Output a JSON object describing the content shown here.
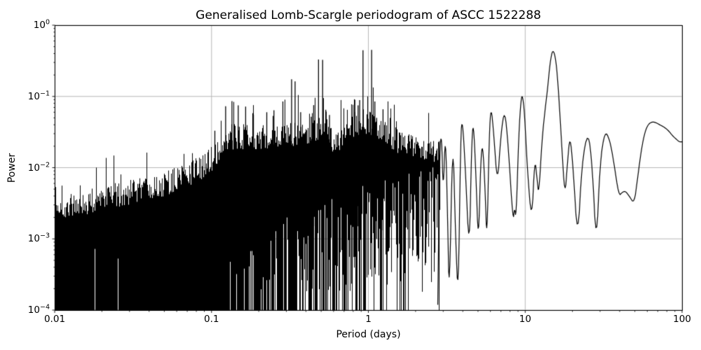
{
  "chart_data": {
    "type": "line",
    "title": "Generalised Lomb-Scargle periodogram of ASCC 1522288",
    "xlabel": "Period (days)",
    "ylabel": "Power",
    "xscale": "log",
    "yscale": "log",
    "xlim": [
      0.01,
      100
    ],
    "ylim": [
      0.0001,
      1
    ],
    "grid": true,
    "legend": null,
    "colors": {
      "line": "#000000",
      "grid": "#b0b0b0",
      "background": "#ffffff",
      "text": "#000000"
    },
    "x_ticks": [
      {
        "value": 0.01,
        "label": "0.01"
      },
      {
        "value": 0.1,
        "label": "0.1"
      },
      {
        "value": 1,
        "label": "1"
      },
      {
        "value": 10,
        "label": "10"
      },
      {
        "value": 100,
        "label": "100"
      }
    ],
    "y_ticks": [
      {
        "value": 1,
        "base": "10",
        "exp": "0"
      },
      {
        "value": 0.1,
        "base": "10",
        "exp": "−1"
      },
      {
        "value": 0.01,
        "base": "10",
        "exp": "−2"
      },
      {
        "value": 0.001,
        "base": "10",
        "exp": "−3"
      },
      {
        "value": 0.0001,
        "base": "10",
        "exp": "−4"
      }
    ],
    "noise_region": {
      "x_start": 0.01,
      "x_end": 2.85,
      "seed": 12,
      "envelope": [
        [
          0.01,
          0.0034
        ],
        [
          0.014,
          0.0038
        ],
        [
          0.02,
          0.0044
        ],
        [
          0.03,
          0.0055
        ],
        [
          0.045,
          0.0068
        ],
        [
          0.06,
          0.0082
        ],
        [
          0.08,
          0.011
        ],
        [
          0.1,
          0.016
        ],
        [
          0.115,
          0.024
        ],
        [
          0.13,
          0.032
        ],
        [
          0.15,
          0.034
        ],
        [
          0.18,
          0.03
        ],
        [
          0.22,
          0.032
        ],
        [
          0.27,
          0.034
        ],
        [
          0.32,
          0.036
        ],
        [
          0.38,
          0.036
        ],
        [
          0.44,
          0.042
        ],
        [
          0.5,
          0.046
        ],
        [
          0.56,
          0.036
        ],
        [
          0.62,
          0.024
        ],
        [
          0.7,
          0.032
        ],
        [
          0.8,
          0.048
        ],
        [
          0.9,
          0.055
        ],
        [
          1.0,
          0.05
        ],
        [
          1.15,
          0.044
        ],
        [
          1.3,
          0.038
        ],
        [
          1.5,
          0.03
        ],
        [
          1.8,
          0.024
        ],
        [
          2.1,
          0.021
        ],
        [
          2.5,
          0.023
        ],
        [
          2.85,
          0.019
        ]
      ],
      "gap_probability": [
        [
          0.01,
          0.0
        ],
        [
          0.13,
          0.02
        ],
        [
          0.18,
          0.15
        ],
        [
          0.25,
          0.25
        ],
        [
          0.4,
          0.35
        ],
        [
          0.6,
          0.5
        ],
        [
          1.0,
          0.7
        ],
        [
          1.5,
          0.8
        ],
        [
          2.0,
          0.85
        ],
        [
          2.85,
          0.9
        ]
      ],
      "gap_top_exp": [
        [
          0.14,
          -3.0
        ],
        [
          0.3,
          -2.7
        ],
        [
          0.6,
          -2.4
        ],
        [
          1.0,
          -2.2
        ],
        [
          2.0,
          -1.9
        ],
        [
          2.85,
          -1.75
        ]
      ]
    },
    "major_peaks": [
      [
        0.105,
        0.033
      ],
      [
        0.123,
        0.073
      ],
      [
        0.135,
        0.086
      ],
      [
        0.148,
        0.075
      ],
      [
        0.165,
        0.072
      ],
      [
        0.185,
        0.055
      ],
      [
        0.225,
        0.06
      ],
      [
        0.25,
        0.064
      ],
      [
        0.285,
        0.085
      ],
      [
        0.324,
        0.174
      ],
      [
        0.341,
        0.163
      ],
      [
        0.37,
        0.06
      ],
      [
        0.432,
        0.052
      ],
      [
        0.448,
        0.0755
      ],
      [
        0.481,
        0.33
      ],
      [
        0.511,
        0.327
      ],
      [
        0.535,
        0.065
      ],
      [
        0.565,
        0.055
      ],
      [
        0.82,
        0.09
      ],
      [
        0.86,
        0.075
      ],
      [
        0.88,
        0.089
      ],
      [
        0.924,
        0.445
      ],
      [
        1.049,
        0.45
      ],
      [
        1.1,
        0.085
      ],
      [
        1.13,
        0.05
      ],
      [
        1.24,
        0.066
      ]
    ],
    "resolved_curve": [
      [
        2.77,
        0.00012
      ],
      [
        2.85,
        0.018
      ],
      [
        2.93,
        0.031
      ],
      [
        3.0,
        0.004
      ],
      [
        3.1,
        0.036
      ],
      [
        3.2,
        0.002
      ],
      [
        3.28,
        0.00012
      ],
      [
        3.45,
        0.037
      ],
      [
        3.6,
        0.001
      ],
      [
        3.74,
        0.00013
      ],
      [
        3.88,
        0.03
      ],
      [
        3.98,
        0.048
      ],
      [
        4.15,
        0.01
      ],
      [
        4.4,
        0.00056
      ],
      [
        4.55,
        0.02
      ],
      [
        4.67,
        0.047
      ],
      [
        4.85,
        0.008
      ],
      [
        5.03,
        0.00076
      ],
      [
        5.2,
        0.012
      ],
      [
        5.35,
        0.023
      ],
      [
        5.55,
        0.005
      ],
      [
        5.7,
        0.00081
      ],
      [
        5.9,
        0.03
      ],
      [
        6.06,
        0.074
      ],
      [
        6.3,
        0.03
      ],
      [
        6.65,
        0.0054
      ],
      [
        7.0,
        0.03
      ],
      [
        7.4,
        0.068
      ],
      [
        7.8,
        0.02
      ],
      [
        8.36,
        0.0017
      ],
      [
        8.55,
        0.0028
      ],
      [
        8.75,
        0.0019
      ],
      [
        9.1,
        0.03
      ],
      [
        9.4,
        0.09
      ],
      [
        9.6,
        0.105
      ],
      [
        9.9,
        0.06
      ],
      [
        10.3,
        0.01
      ],
      [
        11.0,
        0.0016
      ],
      [
        11.5,
        0.014
      ],
      [
        11.9,
        0.007
      ],
      [
        12.2,
        0.004
      ],
      [
        12.8,
        0.025
      ],
      [
        13.4,
        0.067
      ],
      [
        13.9,
        0.13
      ],
      [
        14.4,
        0.3
      ],
      [
        15.0,
        0.47
      ],
      [
        15.7,
        0.33
      ],
      [
        16.3,
        0.12
      ],
      [
        17.0,
        0.025
      ],
      [
        17.9,
        0.0037
      ],
      [
        18.6,
        0.012
      ],
      [
        19.3,
        0.029
      ],
      [
        20.2,
        0.01
      ],
      [
        21.6,
        0.00087
      ],
      [
        23.0,
        0.012
      ],
      [
        25.2,
        0.034
      ],
      [
        26.8,
        0.01
      ],
      [
        28.4,
        0.00074
      ],
      [
        30.0,
        0.012
      ],
      [
        32.2,
        0.033
      ],
      [
        34.5,
        0.025
      ],
      [
        36.5,
        0.013
      ],
      [
        39.5,
        0.004
      ],
      [
        41.5,
        0.0045
      ],
      [
        43.5,
        0.0047
      ],
      [
        46.0,
        0.004
      ],
      [
        49.5,
        0.0031
      ],
      [
        52.0,
        0.007
      ],
      [
        55.0,
        0.018
      ],
      [
        58.0,
        0.032
      ],
      [
        61.0,
        0.041
      ],
      [
        64.5,
        0.044
      ],
      [
        68.0,
        0.043
      ],
      [
        72.0,
        0.04
      ],
      [
        77.0,
        0.037
      ],
      [
        82.0,
        0.033
      ],
      [
        87.0,
        0.028
      ],
      [
        92.0,
        0.025
      ],
      [
        96.0,
        0.023
      ],
      [
        100.0,
        0.023
      ]
    ]
  }
}
